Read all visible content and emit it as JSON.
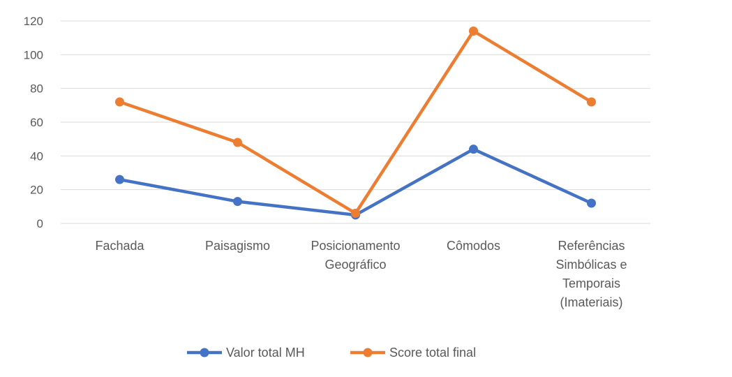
{
  "chart_data": {
    "type": "line",
    "categories": [
      [
        "Fachada"
      ],
      [
        "Paisagismo"
      ],
      [
        "Posicionamento",
        "Geográfico"
      ],
      [
        "Cômodos"
      ],
      [
        "Referências",
        "Simbólicas e",
        "Temporais",
        "(Imateriais)"
      ]
    ],
    "series": [
      {
        "name": "Valor total MH",
        "color": "#4472C4",
        "values": [
          26,
          13,
          5,
          44,
          12
        ]
      },
      {
        "name": "Score total final",
        "color": "#ED7D31",
        "values": [
          72,
          48,
          6,
          114,
          72
        ]
      }
    ],
    "ylim": [
      0,
      120
    ],
    "yticks": [
      0,
      20,
      40,
      60,
      80,
      100,
      120
    ],
    "grid": true,
    "legend": "bottom",
    "title": "",
    "xlabel": "",
    "ylabel": ""
  }
}
